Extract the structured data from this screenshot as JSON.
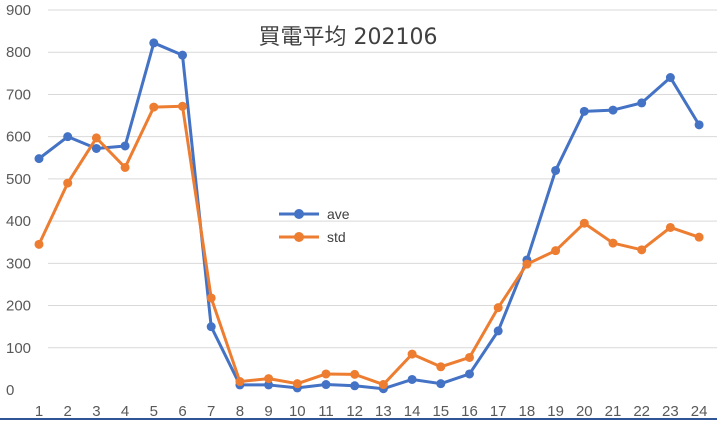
{
  "chart_data": {
    "type": "line",
    "title": "買電平均 202106",
    "xlabel": "",
    "ylabel": "",
    "categories": [
      "1",
      "2",
      "3",
      "4",
      "5",
      "6",
      "7",
      "8",
      "9",
      "10",
      "11",
      "12",
      "13",
      "14",
      "15",
      "16",
      "17",
      "18",
      "19",
      "20",
      "21",
      "22",
      "23",
      "24"
    ],
    "ylim": [
      0,
      900
    ],
    "yticks": [
      "0",
      "100",
      "200",
      "300",
      "400",
      "500",
      "600",
      "700",
      "800",
      "900"
    ],
    "grid": true,
    "legend_position": "center-left",
    "series": [
      {
        "name": "ave",
        "color": "#4472C4",
        "values": [
          548,
          600,
          572,
          578,
          822,
          793,
          150,
          12,
          12,
          5,
          13,
          10,
          3,
          25,
          15,
          38,
          140,
          308,
          520,
          660,
          663,
          680,
          740,
          628
        ]
      },
      {
        "name": "std",
        "color": "#ED7D31",
        "values": [
          345,
          490,
          597,
          527,
          670,
          672,
          218,
          20,
          27,
          15,
          38,
          37,
          13,
          85,
          55,
          77,
          195,
          298,
          330,
          395,
          348,
          332,
          385,
          362
        ]
      }
    ]
  }
}
